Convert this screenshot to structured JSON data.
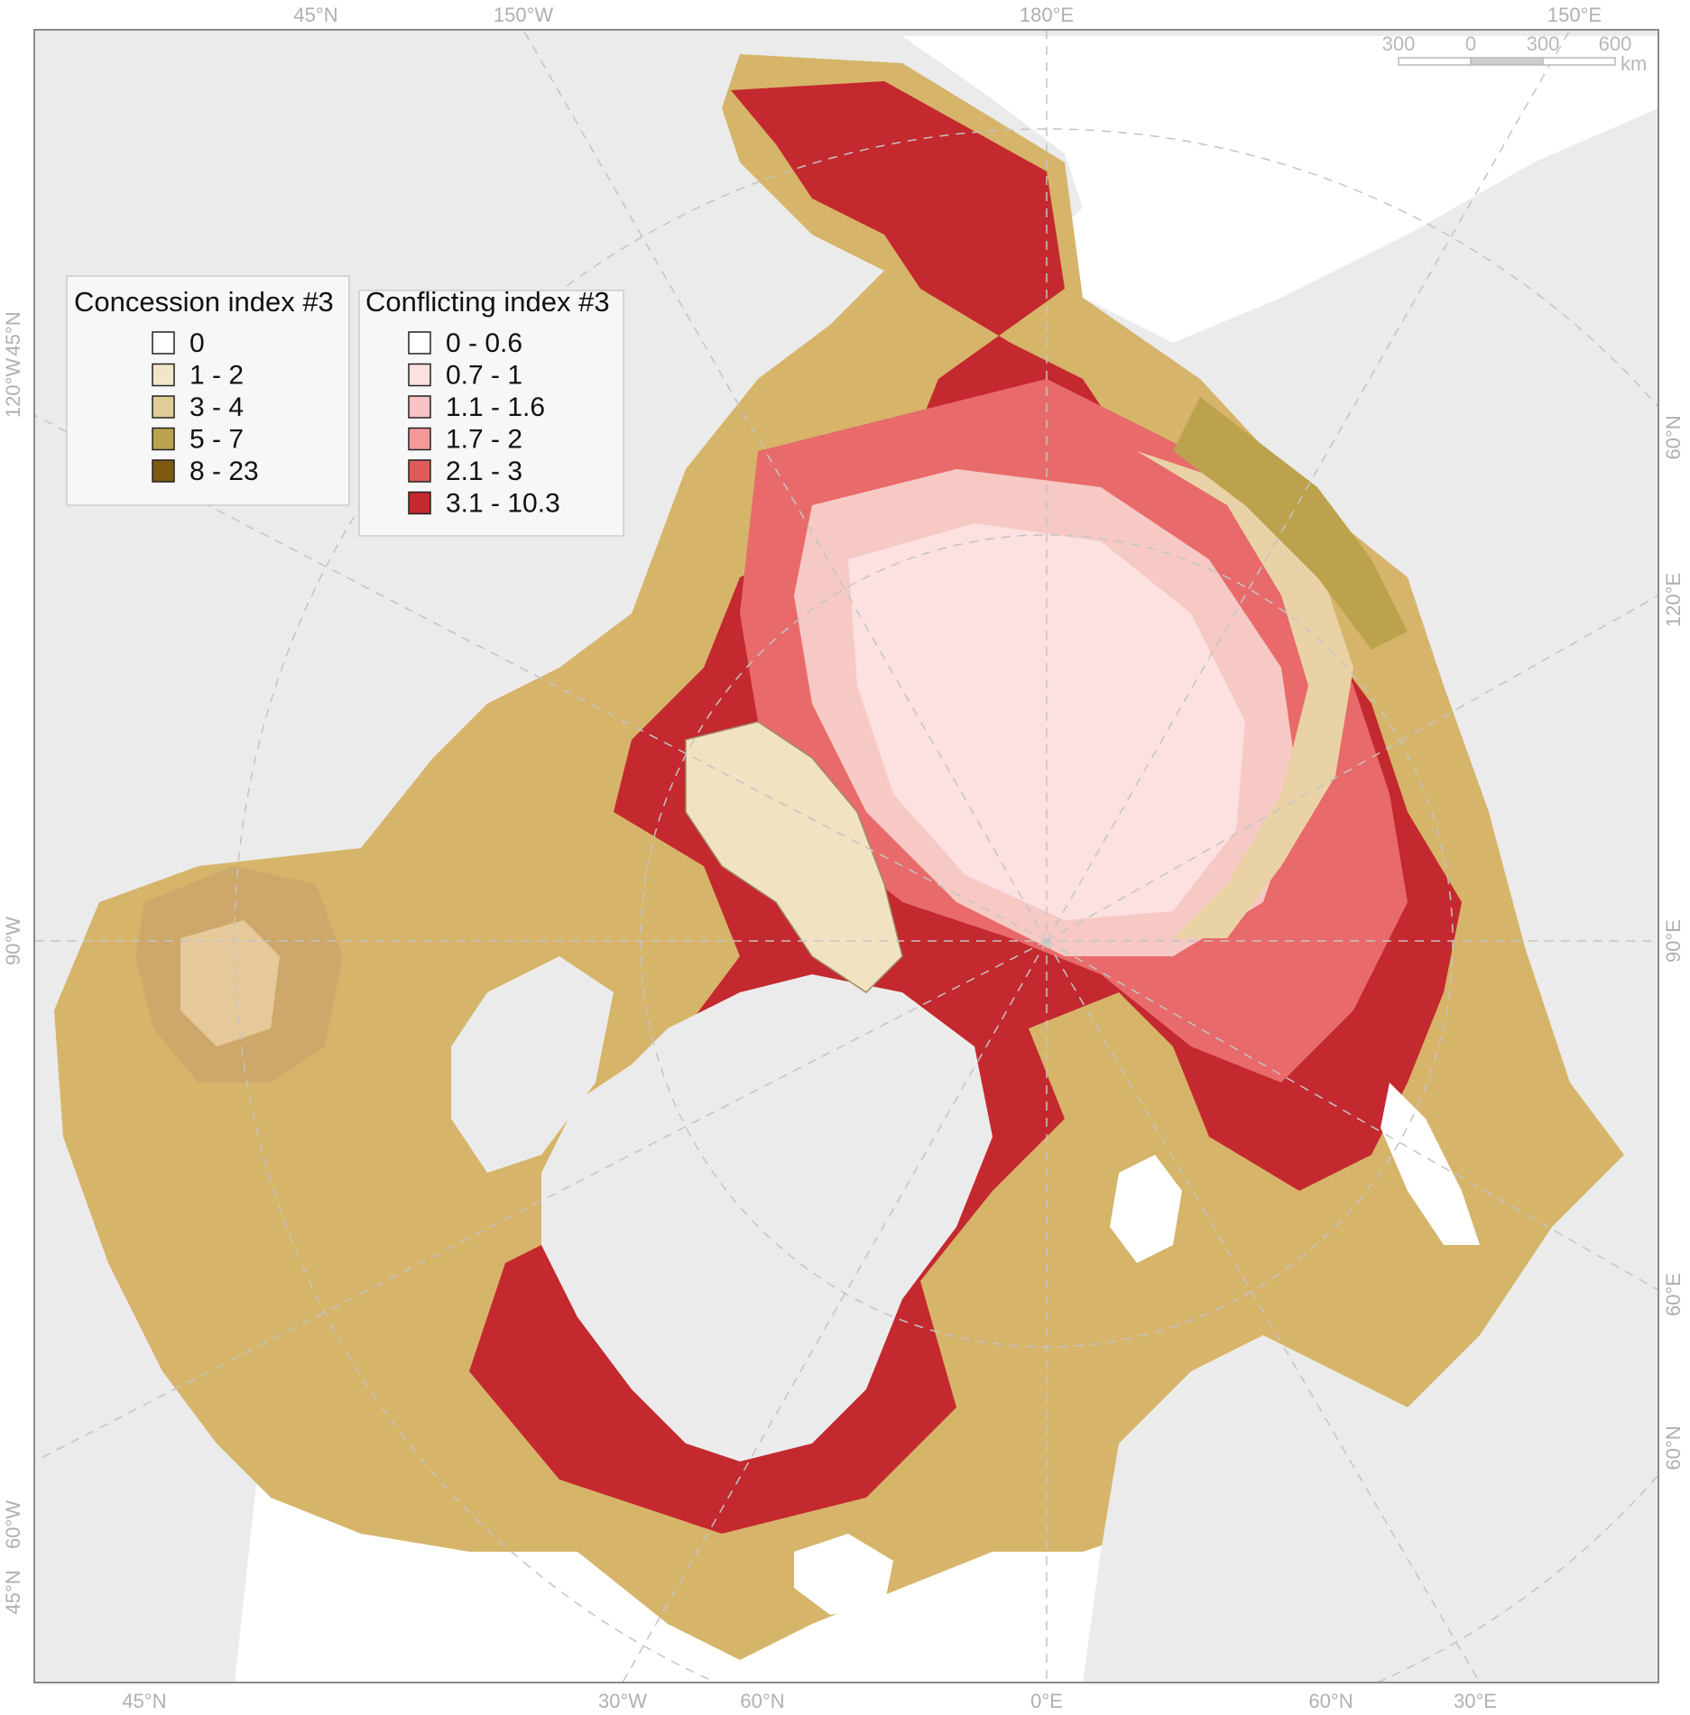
{
  "map": {
    "top_labels": [
      "45°N",
      "150°W",
      "180°E",
      "150°E"
    ],
    "bottom_labels": [
      "45°N",
      "30°W",
      "60°N",
      "0°E",
      "60°N",
      "30°E"
    ],
    "left_labels": [
      "120°W",
      "45°N",
      "90°W",
      "45°N",
      "60°W"
    ],
    "right_labels": [
      "60°N",
      "120°E",
      "90°E",
      "60°E",
      "60°N"
    ]
  },
  "scale_bar": {
    "ticks": [
      "300",
      "0",
      "300",
      "600"
    ],
    "unit": "km"
  },
  "legend_concession": {
    "title": "Concession index #3",
    "items": [
      {
        "label": "0",
        "color": "#ffffff"
      },
      {
        "label": "1 - 2",
        "color": "#f3e6c8"
      },
      {
        "label": "3 - 4",
        "color": "#e0cc94"
      },
      {
        "label": "5 - 7",
        "color": "#bca24c"
      },
      {
        "label": "8 - 23",
        "color": "#7d5a10"
      }
    ]
  },
  "legend_conflicting": {
    "title": "Conflicting index #3",
    "items": [
      {
        "label": "0 - 0.6",
        "color": "#ffffff"
      },
      {
        "label": "0.7 - 1",
        "color": "#fde0e0"
      },
      {
        "label": "1.1 - 1.6",
        "color": "#fbc3c3"
      },
      {
        "label": "1.7 - 2",
        "color": "#f49898"
      },
      {
        "label": "2.1 - 3",
        "color": "#e15a5a"
      },
      {
        "label": "3.1 - 10.3",
        "color": "#c4292f"
      }
    ]
  }
}
